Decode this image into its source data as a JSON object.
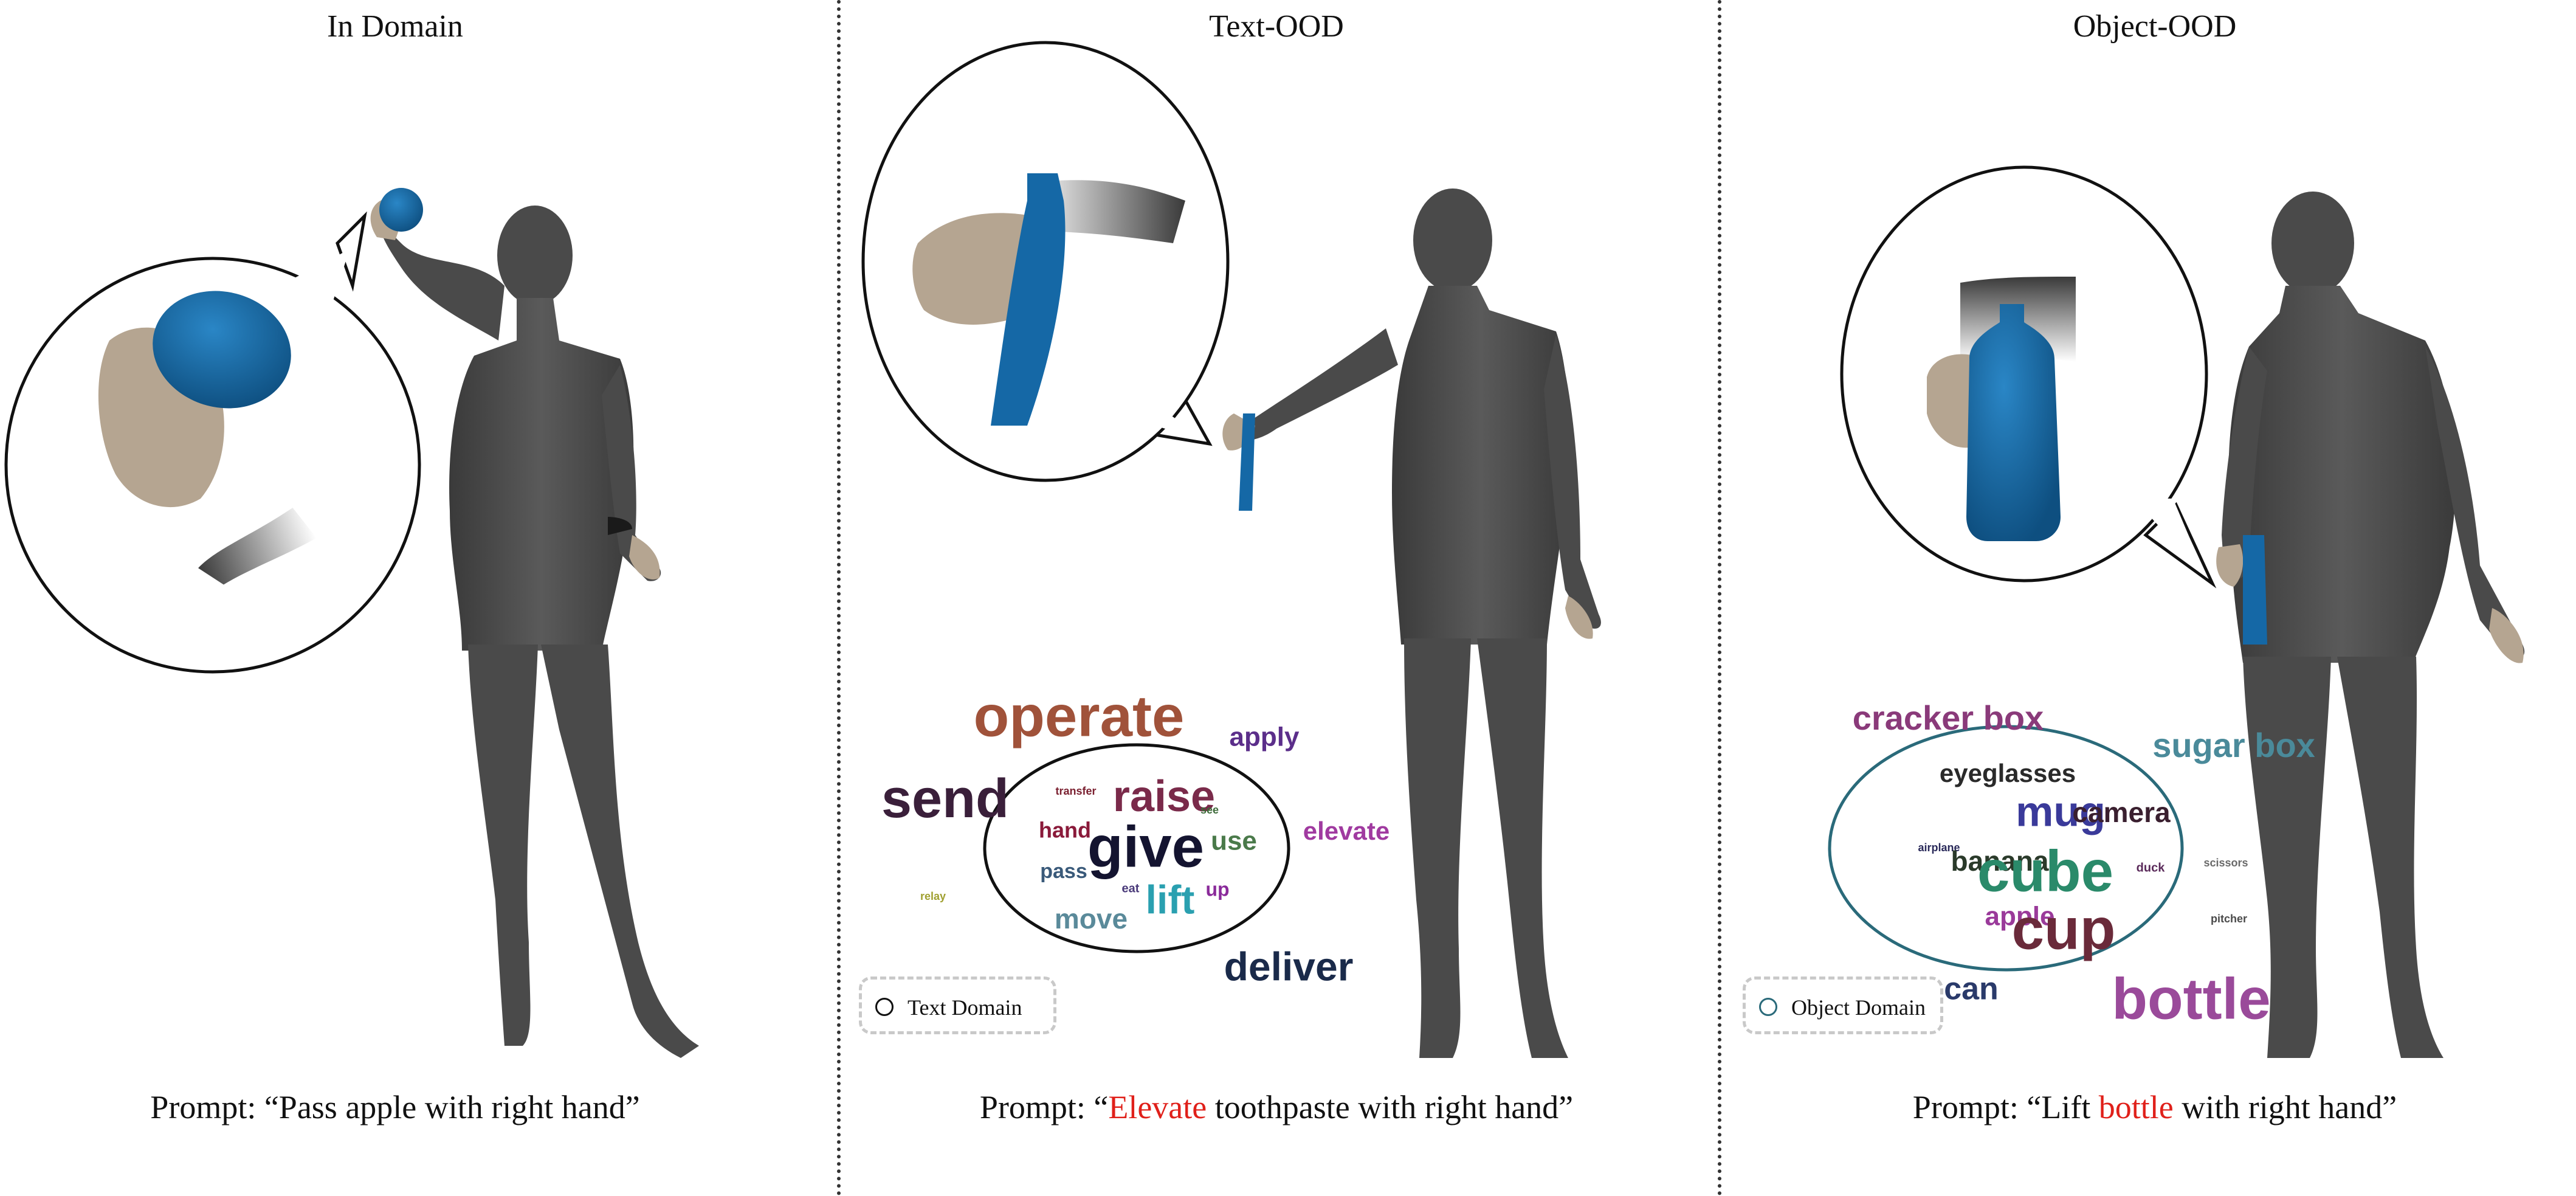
{
  "panels": [
    {
      "title": "In Domain",
      "prompt": {
        "before": "Prompt: “Pass apple with right hand”",
        "highlight": "",
        "after": ""
      }
    },
    {
      "title": "Text-OOD",
      "prompt": {
        "before": "Prompt: “",
        "highlight": "Elevate",
        "after": " toothpaste with right hand”"
      },
      "legend_label": "Text Domain",
      "words": [
        {
          "text": "operate",
          "color": "#a0523a"
        },
        {
          "text": "apply",
          "color": "#5b2e8a"
        },
        {
          "text": "send",
          "color": "#3a1f3a"
        },
        {
          "text": "transfer",
          "color": "#7a1f2f"
        },
        {
          "text": "raise",
          "color": "#7a2a4a"
        },
        {
          "text": "see",
          "color": "#3d6b3a"
        },
        {
          "text": "hand",
          "color": "#8a1a3a"
        },
        {
          "text": "give",
          "color": "#141430"
        },
        {
          "text": "use",
          "color": "#4a7a4a"
        },
        {
          "text": "elevate",
          "color": "#a03aa0"
        },
        {
          "text": "pass",
          "color": "#3a5a7a"
        },
        {
          "text": "eat",
          "color": "#4a3a7a"
        },
        {
          "text": "lift",
          "color": "#2aa0b0"
        },
        {
          "text": "up",
          "color": "#8a2a9a"
        },
        {
          "text": "relay",
          "color": "#a0a030"
        },
        {
          "text": "move",
          "color": "#5a8a9a"
        },
        {
          "text": "deliver",
          "color": "#1a2a4a"
        }
      ]
    },
    {
      "title": "Object-OOD",
      "prompt": {
        "before": "Prompt: “Lift ",
        "highlight": "bottle",
        "after": " with right hand”"
      },
      "legend_label": "Object Domain",
      "words": [
        {
          "text": "cracker box",
          "color": "#8a3a7a"
        },
        {
          "text": "sugar box",
          "color": "#4a8a9a"
        },
        {
          "text": "eyeglasses",
          "color": "#2a2a2a"
        },
        {
          "text": "mug",
          "color": "#3a3a9a"
        },
        {
          "text": "camera",
          "color": "#3a1f2f"
        },
        {
          "text": "airplane",
          "color": "#2a2a5a"
        },
        {
          "text": "banana",
          "color": "#2a3a2a"
        },
        {
          "text": "cube",
          "color": "#2a8a6a"
        },
        {
          "text": "duck",
          "color": "#5a2a5a"
        },
        {
          "text": "scissors",
          "color": "#6a6a6a"
        },
        {
          "text": "apple",
          "color": "#9a3a9a"
        },
        {
          "text": "cup",
          "color": "#6a2a3a"
        },
        {
          "text": "pitcher",
          "color": "#4a4a4a"
        },
        {
          "text": "can",
          "color": "#2a3a6a"
        },
        {
          "text": "bottle",
          "color": "#9a4a9a"
        }
      ]
    }
  ],
  "colors": {
    "body": "#4a4a4a",
    "hand": "#b5a591",
    "object": "#1568a6",
    "highlight": "#e0201a"
  }
}
